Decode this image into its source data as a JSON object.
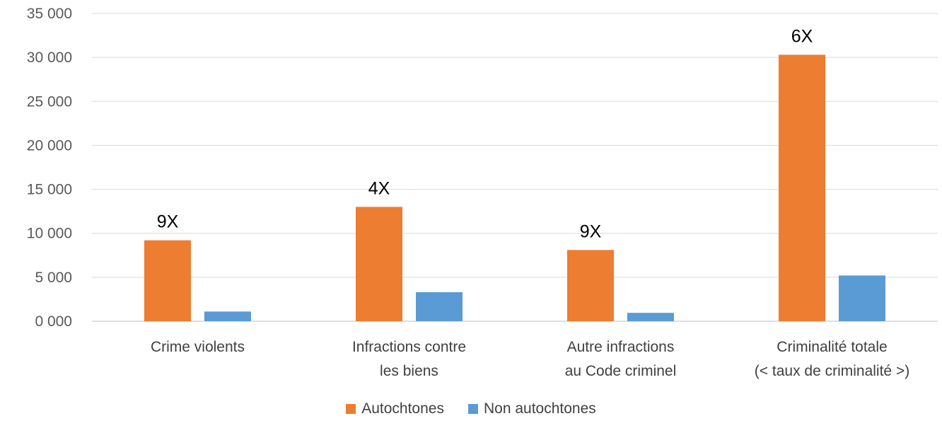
{
  "chart_data": {
    "type": "bar",
    "categories": [
      [
        "Crime violents"
      ],
      [
        "Infractions contre",
        "les biens"
      ],
      [
        "Autre infractions",
        "au Code criminel"
      ],
      [
        "Criminalité totale",
        "(< taux de criminalité >)"
      ]
    ],
    "series": [
      {
        "name": "Autochtones",
        "color": "#ED7D31",
        "values": [
          9200,
          13000,
          8100,
          30300
        ]
      },
      {
        "name": "Non autochtones",
        "color": "#5B9BD5",
        "values": [
          1100,
          3300,
          950,
          5200
        ]
      }
    ],
    "annotations": [
      "9X",
      "4X",
      "9X",
      "6X"
    ],
    "ylim": [
      0,
      35000
    ],
    "yticks": [
      0,
      5000,
      10000,
      15000,
      20000,
      25000,
      30000,
      35000
    ],
    "ytick_labels": [
      "0 000",
      "5 000",
      "10 000",
      "15 000",
      "20 000",
      "25 000",
      "30 000",
      "35 000"
    ],
    "grid": true,
    "legend_position": "bottom"
  }
}
